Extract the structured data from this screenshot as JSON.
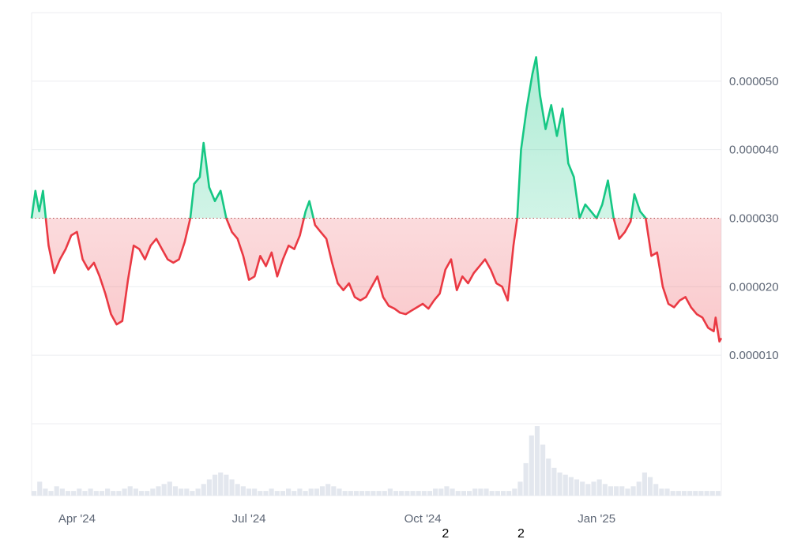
{
  "chart_data": {
    "type": "area",
    "title": "",
    "xlabel": "",
    "ylabel": "",
    "baseline": 3e-05,
    "ylim": [
      0.0,
      6e-05
    ],
    "y_ticks": [
      {
        "value": 1e-05,
        "label": "0.000010"
      },
      {
        "value": 2e-05,
        "label": "0.000020"
      },
      {
        "value": 3e-05,
        "label": "0.000030"
      },
      {
        "value": 4e-05,
        "label": "0.000040"
      },
      {
        "value": 5e-05,
        "label": "0.000050"
      }
    ],
    "x_ticks": [
      {
        "date": "2024-04-01",
        "label": "Apr '24"
      },
      {
        "date": "2024-07-01",
        "label": "Jul '24"
      },
      {
        "date": "2024-10-01",
        "label": "Oct '24"
      },
      {
        "date": "2025-01-01",
        "label": "Jan '25"
      }
    ],
    "x_range": [
      "2024-03-08",
      "2025-03-08"
    ],
    "grid": true,
    "colors": {
      "above": "#16c784",
      "below": "#ea3943",
      "above_fill": "#16c784",
      "below_fill": "#ea3943",
      "grid": "#eceef1",
      "baseline": "#b04a4a",
      "volume": "#e3e7ee"
    },
    "markers": [
      {
        "date": "2024-10-13",
        "label": "2"
      },
      {
        "date": "2024-11-22",
        "label": "2"
      }
    ],
    "series": [
      {
        "values": [
          [
            "2024-03-08",
            3e-05
          ],
          [
            "2024-03-10",
            3.4e-05
          ],
          [
            "2024-03-12",
            3.1e-05
          ],
          [
            "2024-03-14",
            3.4e-05
          ],
          [
            "2024-03-17",
            2.6e-05
          ],
          [
            "2024-03-20",
            2.2e-05
          ],
          [
            "2024-03-23",
            2.4e-05
          ],
          [
            "2024-03-26",
            2.55e-05
          ],
          [
            "2024-03-29",
            2.75e-05
          ],
          [
            "2024-04-01",
            2.8e-05
          ],
          [
            "2024-04-04",
            2.4e-05
          ],
          [
            "2024-04-07",
            2.25e-05
          ],
          [
            "2024-04-10",
            2.35e-05
          ],
          [
            "2024-04-13",
            2.15e-05
          ],
          [
            "2024-04-16",
            1.9e-05
          ],
          [
            "2024-04-19",
            1.6e-05
          ],
          [
            "2024-04-22",
            1.45e-05
          ],
          [
            "2024-04-25",
            1.5e-05
          ],
          [
            "2024-04-28",
            2.1e-05
          ],
          [
            "2024-05-01",
            2.6e-05
          ],
          [
            "2024-05-04",
            2.55e-05
          ],
          [
            "2024-05-07",
            2.4e-05
          ],
          [
            "2024-05-10",
            2.6e-05
          ],
          [
            "2024-05-13",
            2.7e-05
          ],
          [
            "2024-05-16",
            2.55e-05
          ],
          [
            "2024-05-19",
            2.4e-05
          ],
          [
            "2024-05-22",
            2.35e-05
          ],
          [
            "2024-05-25",
            2.4e-05
          ],
          [
            "2024-05-28",
            2.65e-05
          ],
          [
            "2024-05-31",
            3e-05
          ],
          [
            "2024-06-02",
            3.5e-05
          ],
          [
            "2024-06-05",
            3.6e-05
          ],
          [
            "2024-06-07",
            4.1e-05
          ],
          [
            "2024-06-10",
            3.45e-05
          ],
          [
            "2024-06-13",
            3.25e-05
          ],
          [
            "2024-06-16",
            3.4e-05
          ],
          [
            "2024-06-19",
            3e-05
          ],
          [
            "2024-06-22",
            2.8e-05
          ],
          [
            "2024-06-25",
            2.7e-05
          ],
          [
            "2024-06-28",
            2.45e-05
          ],
          [
            "2024-07-01",
            2.1e-05
          ],
          [
            "2024-07-04",
            2.15e-05
          ],
          [
            "2024-07-07",
            2.45e-05
          ],
          [
            "2024-07-10",
            2.3e-05
          ],
          [
            "2024-07-13",
            2.5e-05
          ],
          [
            "2024-07-16",
            2.15e-05
          ],
          [
            "2024-07-19",
            2.4e-05
          ],
          [
            "2024-07-22",
            2.6e-05
          ],
          [
            "2024-07-25",
            2.55e-05
          ],
          [
            "2024-07-28",
            2.75e-05
          ],
          [
            "2024-07-31",
            3.1e-05
          ],
          [
            "2024-08-02",
            3.25e-05
          ],
          [
            "2024-08-05",
            2.9e-05
          ],
          [
            "2024-08-08",
            2.8e-05
          ],
          [
            "2024-08-11",
            2.7e-05
          ],
          [
            "2024-08-14",
            2.35e-05
          ],
          [
            "2024-08-17",
            2.05e-05
          ],
          [
            "2024-08-20",
            1.95e-05
          ],
          [
            "2024-08-23",
            2.05e-05
          ],
          [
            "2024-08-26",
            1.85e-05
          ],
          [
            "2024-08-29",
            1.8e-05
          ],
          [
            "2024-09-01",
            1.85e-05
          ],
          [
            "2024-09-04",
            2e-05
          ],
          [
            "2024-09-07",
            2.15e-05
          ],
          [
            "2024-09-10",
            1.85e-05
          ],
          [
            "2024-09-13",
            1.72e-05
          ],
          [
            "2024-09-16",
            1.68e-05
          ],
          [
            "2024-09-19",
            1.62e-05
          ],
          [
            "2024-09-22",
            1.6e-05
          ],
          [
            "2024-09-25",
            1.65e-05
          ],
          [
            "2024-09-28",
            1.7e-05
          ],
          [
            "2024-10-01",
            1.75e-05
          ],
          [
            "2024-10-04",
            1.68e-05
          ],
          [
            "2024-10-07",
            1.8e-05
          ],
          [
            "2024-10-10",
            1.9e-05
          ],
          [
            "2024-10-13",
            2.25e-05
          ],
          [
            "2024-10-16",
            2.4e-05
          ],
          [
            "2024-10-19",
            1.95e-05
          ],
          [
            "2024-10-22",
            2.15e-05
          ],
          [
            "2024-10-25",
            2.05e-05
          ],
          [
            "2024-10-28",
            2.2e-05
          ],
          [
            "2024-10-31",
            2.3e-05
          ],
          [
            "2024-11-03",
            2.4e-05
          ],
          [
            "2024-11-06",
            2.25e-05
          ],
          [
            "2024-11-09",
            2.05e-05
          ],
          [
            "2024-11-12",
            2e-05
          ],
          [
            "2024-11-15",
            1.8e-05
          ],
          [
            "2024-11-18",
            2.6e-05
          ],
          [
            "2024-11-20",
            3e-05
          ],
          [
            "2024-11-22",
            4e-05
          ],
          [
            "2024-11-25",
            4.6e-05
          ],
          [
            "2024-11-28",
            5.1e-05
          ],
          [
            "2024-11-30",
            5.35e-05
          ],
          [
            "2024-12-02",
            4.8e-05
          ],
          [
            "2024-12-05",
            4.3e-05
          ],
          [
            "2024-12-08",
            4.65e-05
          ],
          [
            "2024-12-11",
            4.2e-05
          ],
          [
            "2024-12-14",
            4.6e-05
          ],
          [
            "2024-12-17",
            3.8e-05
          ],
          [
            "2024-12-20",
            3.6e-05
          ],
          [
            "2024-12-23",
            3e-05
          ],
          [
            "2024-12-26",
            3.2e-05
          ],
          [
            "2024-12-29",
            3.1e-05
          ],
          [
            "2025-01-01",
            3e-05
          ],
          [
            "2025-01-04",
            3.2e-05
          ],
          [
            "2025-01-07",
            3.55e-05
          ],
          [
            "2025-01-10",
            3e-05
          ],
          [
            "2025-01-13",
            2.7e-05
          ],
          [
            "2025-01-16",
            2.8e-05
          ],
          [
            "2025-01-19",
            2.95e-05
          ],
          [
            "2025-01-21",
            3.35e-05
          ],
          [
            "2025-01-24",
            3.1e-05
          ],
          [
            "2025-01-27",
            3e-05
          ],
          [
            "2025-01-30",
            2.45e-05
          ],
          [
            "2025-02-02",
            2.5e-05
          ],
          [
            "2025-02-05",
            2e-05
          ],
          [
            "2025-02-08",
            1.75e-05
          ],
          [
            "2025-02-11",
            1.7e-05
          ],
          [
            "2025-02-14",
            1.8e-05
          ],
          [
            "2025-02-17",
            1.85e-05
          ],
          [
            "2025-02-20",
            1.7e-05
          ],
          [
            "2025-02-23",
            1.6e-05
          ],
          [
            "2025-02-26",
            1.55e-05
          ],
          [
            "2025-03-01",
            1.4e-05
          ],
          [
            "2025-03-04",
            1.35e-05
          ],
          [
            "2025-03-05",
            1.55e-05
          ],
          [
            "2025-03-07",
            1.2e-05
          ],
          [
            "2025-03-08",
            1.25e-05
          ]
        ]
      }
    ],
    "volume": [
      2,
      6,
      3,
      2,
      4,
      3,
      2,
      2,
      3,
      2,
      3,
      2,
      2,
      3,
      2,
      2,
      3,
      4,
      3,
      2,
      2,
      3,
      4,
      5,
      6,
      4,
      3,
      3,
      2,
      3,
      5,
      7,
      9,
      10,
      9,
      7,
      5,
      4,
      3,
      3,
      2,
      2,
      3,
      2,
      2,
      3,
      2,
      3,
      2,
      3,
      3,
      4,
      5,
      4,
      3,
      2,
      2,
      2,
      2,
      2,
      2,
      2,
      2,
      3,
      2,
      2,
      2,
      2,
      2,
      2,
      2,
      3,
      3,
      4,
      3,
      2,
      2,
      2,
      3,
      3,
      3,
      2,
      2,
      2,
      2,
      3,
      6,
      14,
      26,
      30,
      22,
      16,
      12,
      10,
      9,
      8,
      7,
      6,
      5,
      6,
      7,
      5,
      4,
      4,
      4,
      3,
      4,
      6,
      10,
      8,
      5,
      3,
      3,
      2,
      2,
      2,
      2,
      2,
      2,
      2,
      2,
      2
    ]
  }
}
